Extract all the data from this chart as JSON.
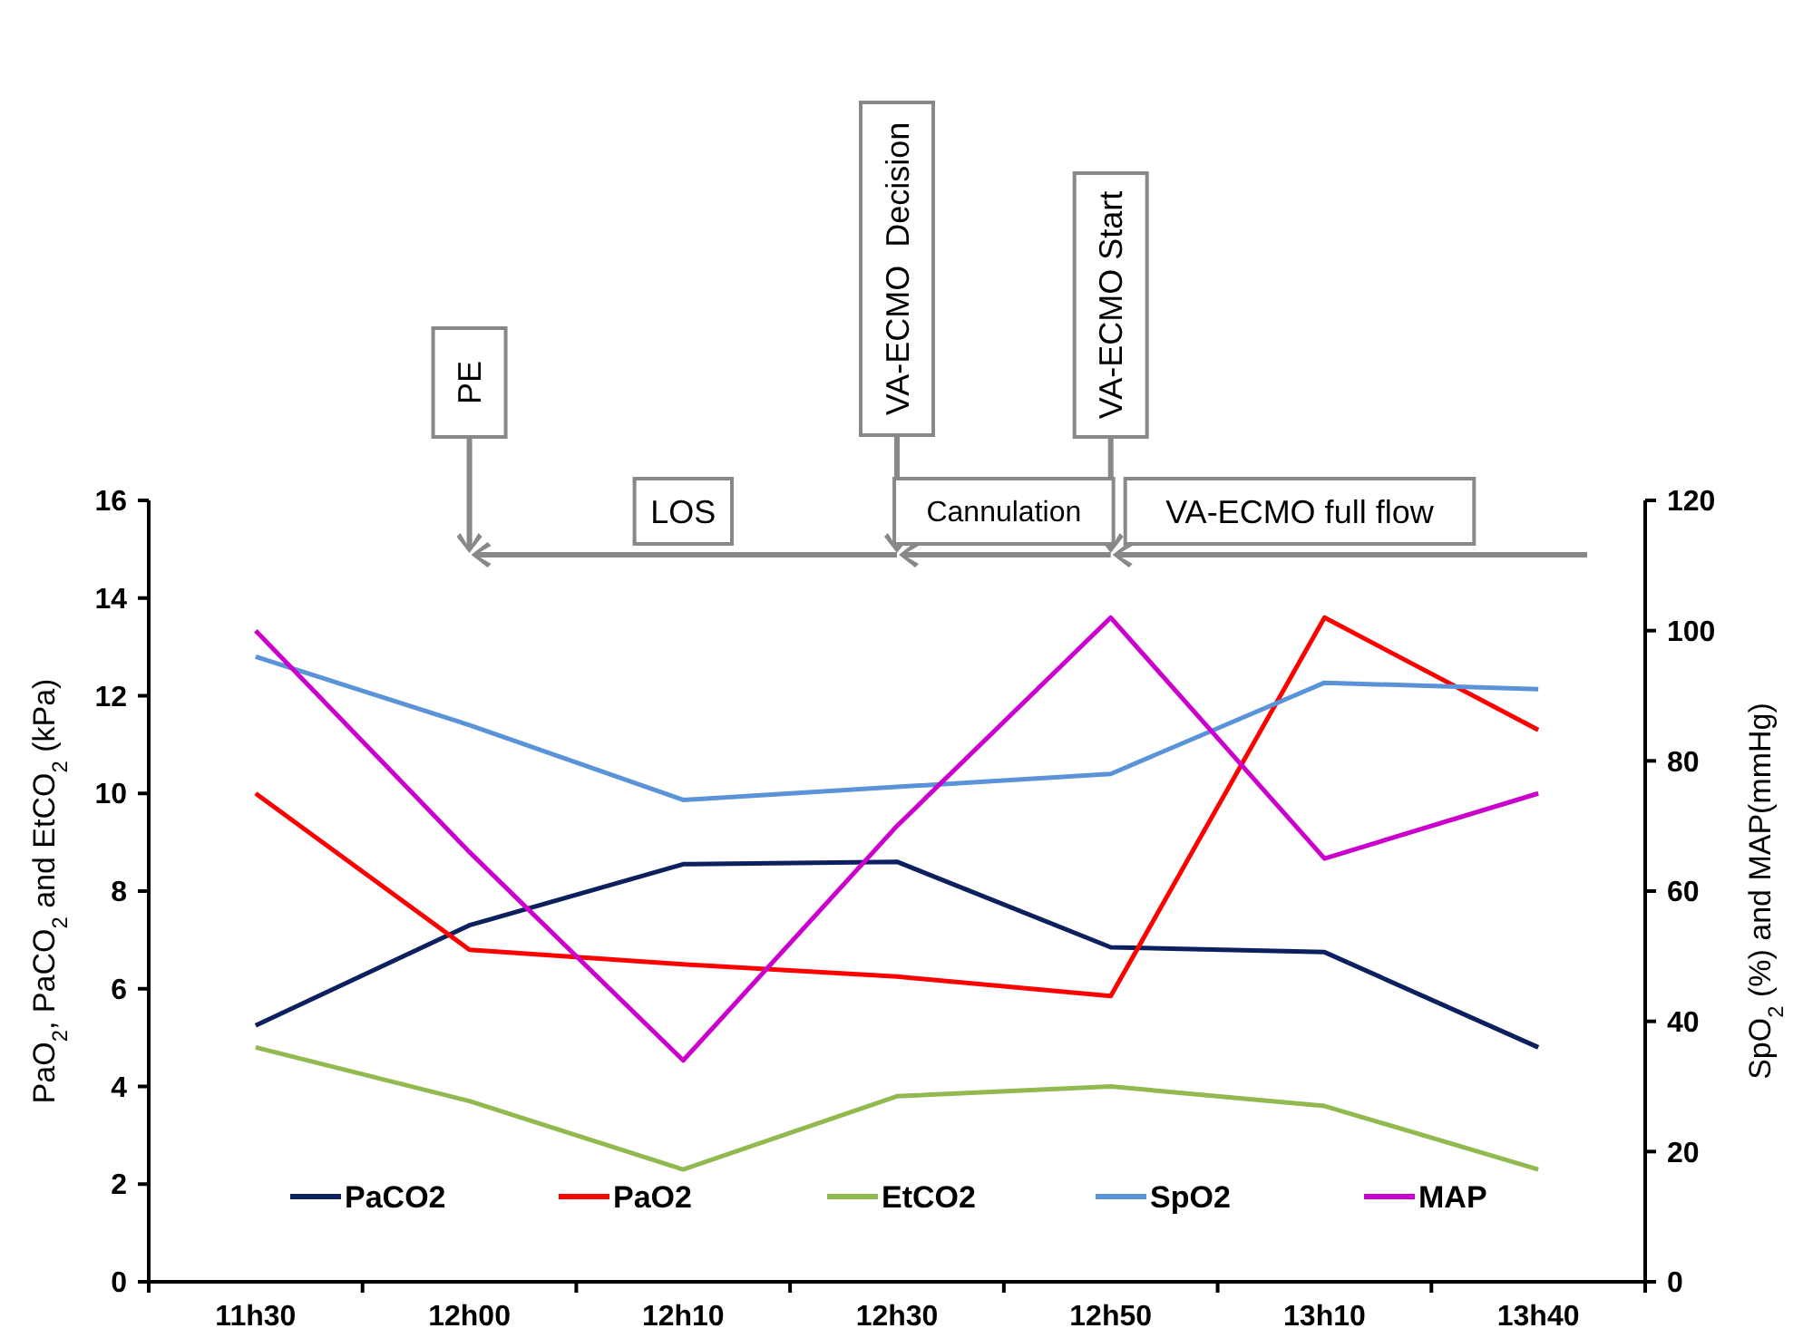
{
  "chart_data": {
    "type": "line",
    "categories": [
      "11h30",
      "12h00",
      "12h10",
      "12h30",
      "12h50",
      "13h10",
      "13h40"
    ],
    "ylabel": "PaO$_{2}$, PaCO$_{2}$ and EtCO$_{2}$ (kPa)",
    "y2label": "SpO$_{2}$ (%) and MAP(mmHg)",
    "ylim": [
      0,
      16
    ],
    "yticks": [
      0,
      2,
      4,
      6,
      8,
      10,
      12,
      14,
      16
    ],
    "y2lim": [
      0,
      120
    ],
    "y2ticks": [
      0,
      20,
      40,
      60,
      80,
      100,
      120
    ],
    "series": [
      {
        "name": "PaCO2",
        "color": "#0c1f5e",
        "values": [
          5.25,
          7.3,
          8.55,
          8.6,
          6.85,
          6.75,
          4.8
        ]
      },
      {
        "name": "PaO2",
        "color": "#ff0000",
        "values": [
          10.0,
          6.8,
          6.5,
          6.25,
          5.85,
          13.6,
          11.3
        ]
      },
      {
        "name": "EtCO2",
        "color": "#92b94f",
        "values": [
          4.8,
          3.7,
          2.3,
          3.8,
          4.0,
          3.6,
          2.3
        ]
      },
      {
        "name": "SpO2",
        "color": "#5b93d9",
        "axis": "y2",
        "values": [
          96,
          85.5,
          74,
          76,
          78,
          92,
          91
        ]
      },
      {
        "name": "MAP",
        "color": "#cc00cc",
        "axis": "y2",
        "values": [
          100,
          66,
          34,
          70,
          102,
          65,
          75
        ]
      }
    ],
    "annotations": [
      "PE",
      "LOS",
      "VA-ECMO  Decision",
      "Cannulation",
      "VA-ECMO Start",
      "VA-ECMO full flow"
    ],
    "legend": "bottom",
    "grid": false,
    "marker": "none",
    "line_style": "solid"
  }
}
